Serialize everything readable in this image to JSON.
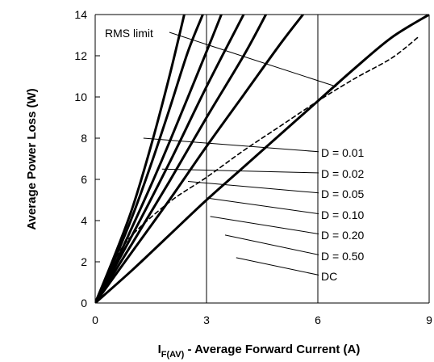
{
  "chart_data": {
    "type": "line",
    "title": "",
    "xlabel_main": "I",
    "xlabel_sub": "F(AV)",
    "xlabel_rest": " - Average Forward Current (A)",
    "ylabel": "Average Power Loss (W)",
    "xlim": [
      0,
      9
    ],
    "ylim": [
      0,
      14
    ],
    "x_ticks": [
      0,
      3,
      6,
      9
    ],
    "y_ticks": [
      0,
      2,
      4,
      6,
      8,
      10,
      12,
      14
    ],
    "grid": true,
    "series": [
      {
        "name": "D = 0.01",
        "points": [
          [
            0,
            0
          ],
          [
            0.5,
            2.2
          ],
          [
            1.0,
            4.6
          ],
          [
            1.5,
            7.6
          ],
          [
            2.0,
            11.0
          ],
          [
            2.4,
            14.0
          ]
        ]
      },
      {
        "name": "D = 0.02",
        "points": [
          [
            0,
            0
          ],
          [
            0.5,
            2.0
          ],
          [
            1.0,
            4.2
          ],
          [
            1.5,
            6.7
          ],
          [
            2.0,
            9.4
          ],
          [
            2.5,
            12.2
          ],
          [
            2.9,
            14.0
          ]
        ]
      },
      {
        "name": "D = 0.05",
        "points": [
          [
            0,
            0
          ],
          [
            0.5,
            1.75
          ],
          [
            1.0,
            3.7
          ],
          [
            1.5,
            5.7
          ],
          [
            2.0,
            7.8
          ],
          [
            3.0,
            12.2
          ],
          [
            3.4,
            14.0
          ]
        ]
      },
      {
        "name": "D = 0.10",
        "points": [
          [
            0,
            0
          ],
          [
            1.0,
            3.3
          ],
          [
            2.0,
            6.8
          ],
          [
            3.0,
            10.5
          ],
          [
            4.0,
            14.0
          ]
        ]
      },
      {
        "name": "D = 0.20",
        "points": [
          [
            0,
            0
          ],
          [
            1.0,
            2.9
          ],
          [
            2.0,
            5.9
          ],
          [
            3.0,
            9.0
          ],
          [
            4.0,
            12.0
          ],
          [
            4.6,
            14.0
          ]
        ]
      },
      {
        "name": "D = 0.50",
        "points": [
          [
            0,
            0
          ],
          [
            1.0,
            2.5
          ],
          [
            2.0,
            5.0
          ],
          [
            3.0,
            7.6
          ],
          [
            4.0,
            10.1
          ],
          [
            5.0,
            12.6
          ],
          [
            5.6,
            14.0
          ]
        ]
      },
      {
        "name": "DC",
        "points": [
          [
            0,
            0
          ],
          [
            1.0,
            1.6
          ],
          [
            2.0,
            3.3
          ],
          [
            3.0,
            5.0
          ],
          [
            4.0,
            6.6
          ],
          [
            5.0,
            8.2
          ],
          [
            6.0,
            9.8
          ],
          [
            7.0,
            11.4
          ],
          [
            8.0,
            12.9
          ],
          [
            9.0,
            14.0
          ]
        ]
      }
    ],
    "rms_limit": {
      "name": "RMS limit",
      "points": [
        [
          0,
          0
        ],
        [
          0.5,
          2.0
        ],
        [
          1.0,
          3.3
        ],
        [
          2.0,
          4.9
        ],
        [
          3.0,
          6.1
        ],
        [
          4.0,
          7.4
        ],
        [
          5.0,
          8.6
        ],
        [
          6.0,
          9.8
        ],
        [
          7.0,
          10.9
        ],
        [
          8.0,
          11.9
        ],
        [
          8.7,
          12.9
        ]
      ]
    },
    "labels": [
      {
        "text": "RMS limit",
        "target": [
          6.5,
          10.5
        ]
      },
      {
        "text": "D = 0.01",
        "target": [
          1.3,
          8.0
        ]
      },
      {
        "text": "D = 0.02",
        "target": [
          1.8,
          6.5
        ]
      },
      {
        "text": "D = 0.05",
        "target": [
          2.5,
          5.9
        ]
      },
      {
        "text": "D = 0.10",
        "target": [
          3.0,
          5.1
        ]
      },
      {
        "text": "D = 0.20",
        "target": [
          3.1,
          4.2
        ]
      },
      {
        "text": "D = 0.50",
        "target": [
          3.5,
          3.3
        ]
      },
      {
        "text": "DC",
        "target": [
          3.8,
          2.2
        ]
      }
    ]
  }
}
